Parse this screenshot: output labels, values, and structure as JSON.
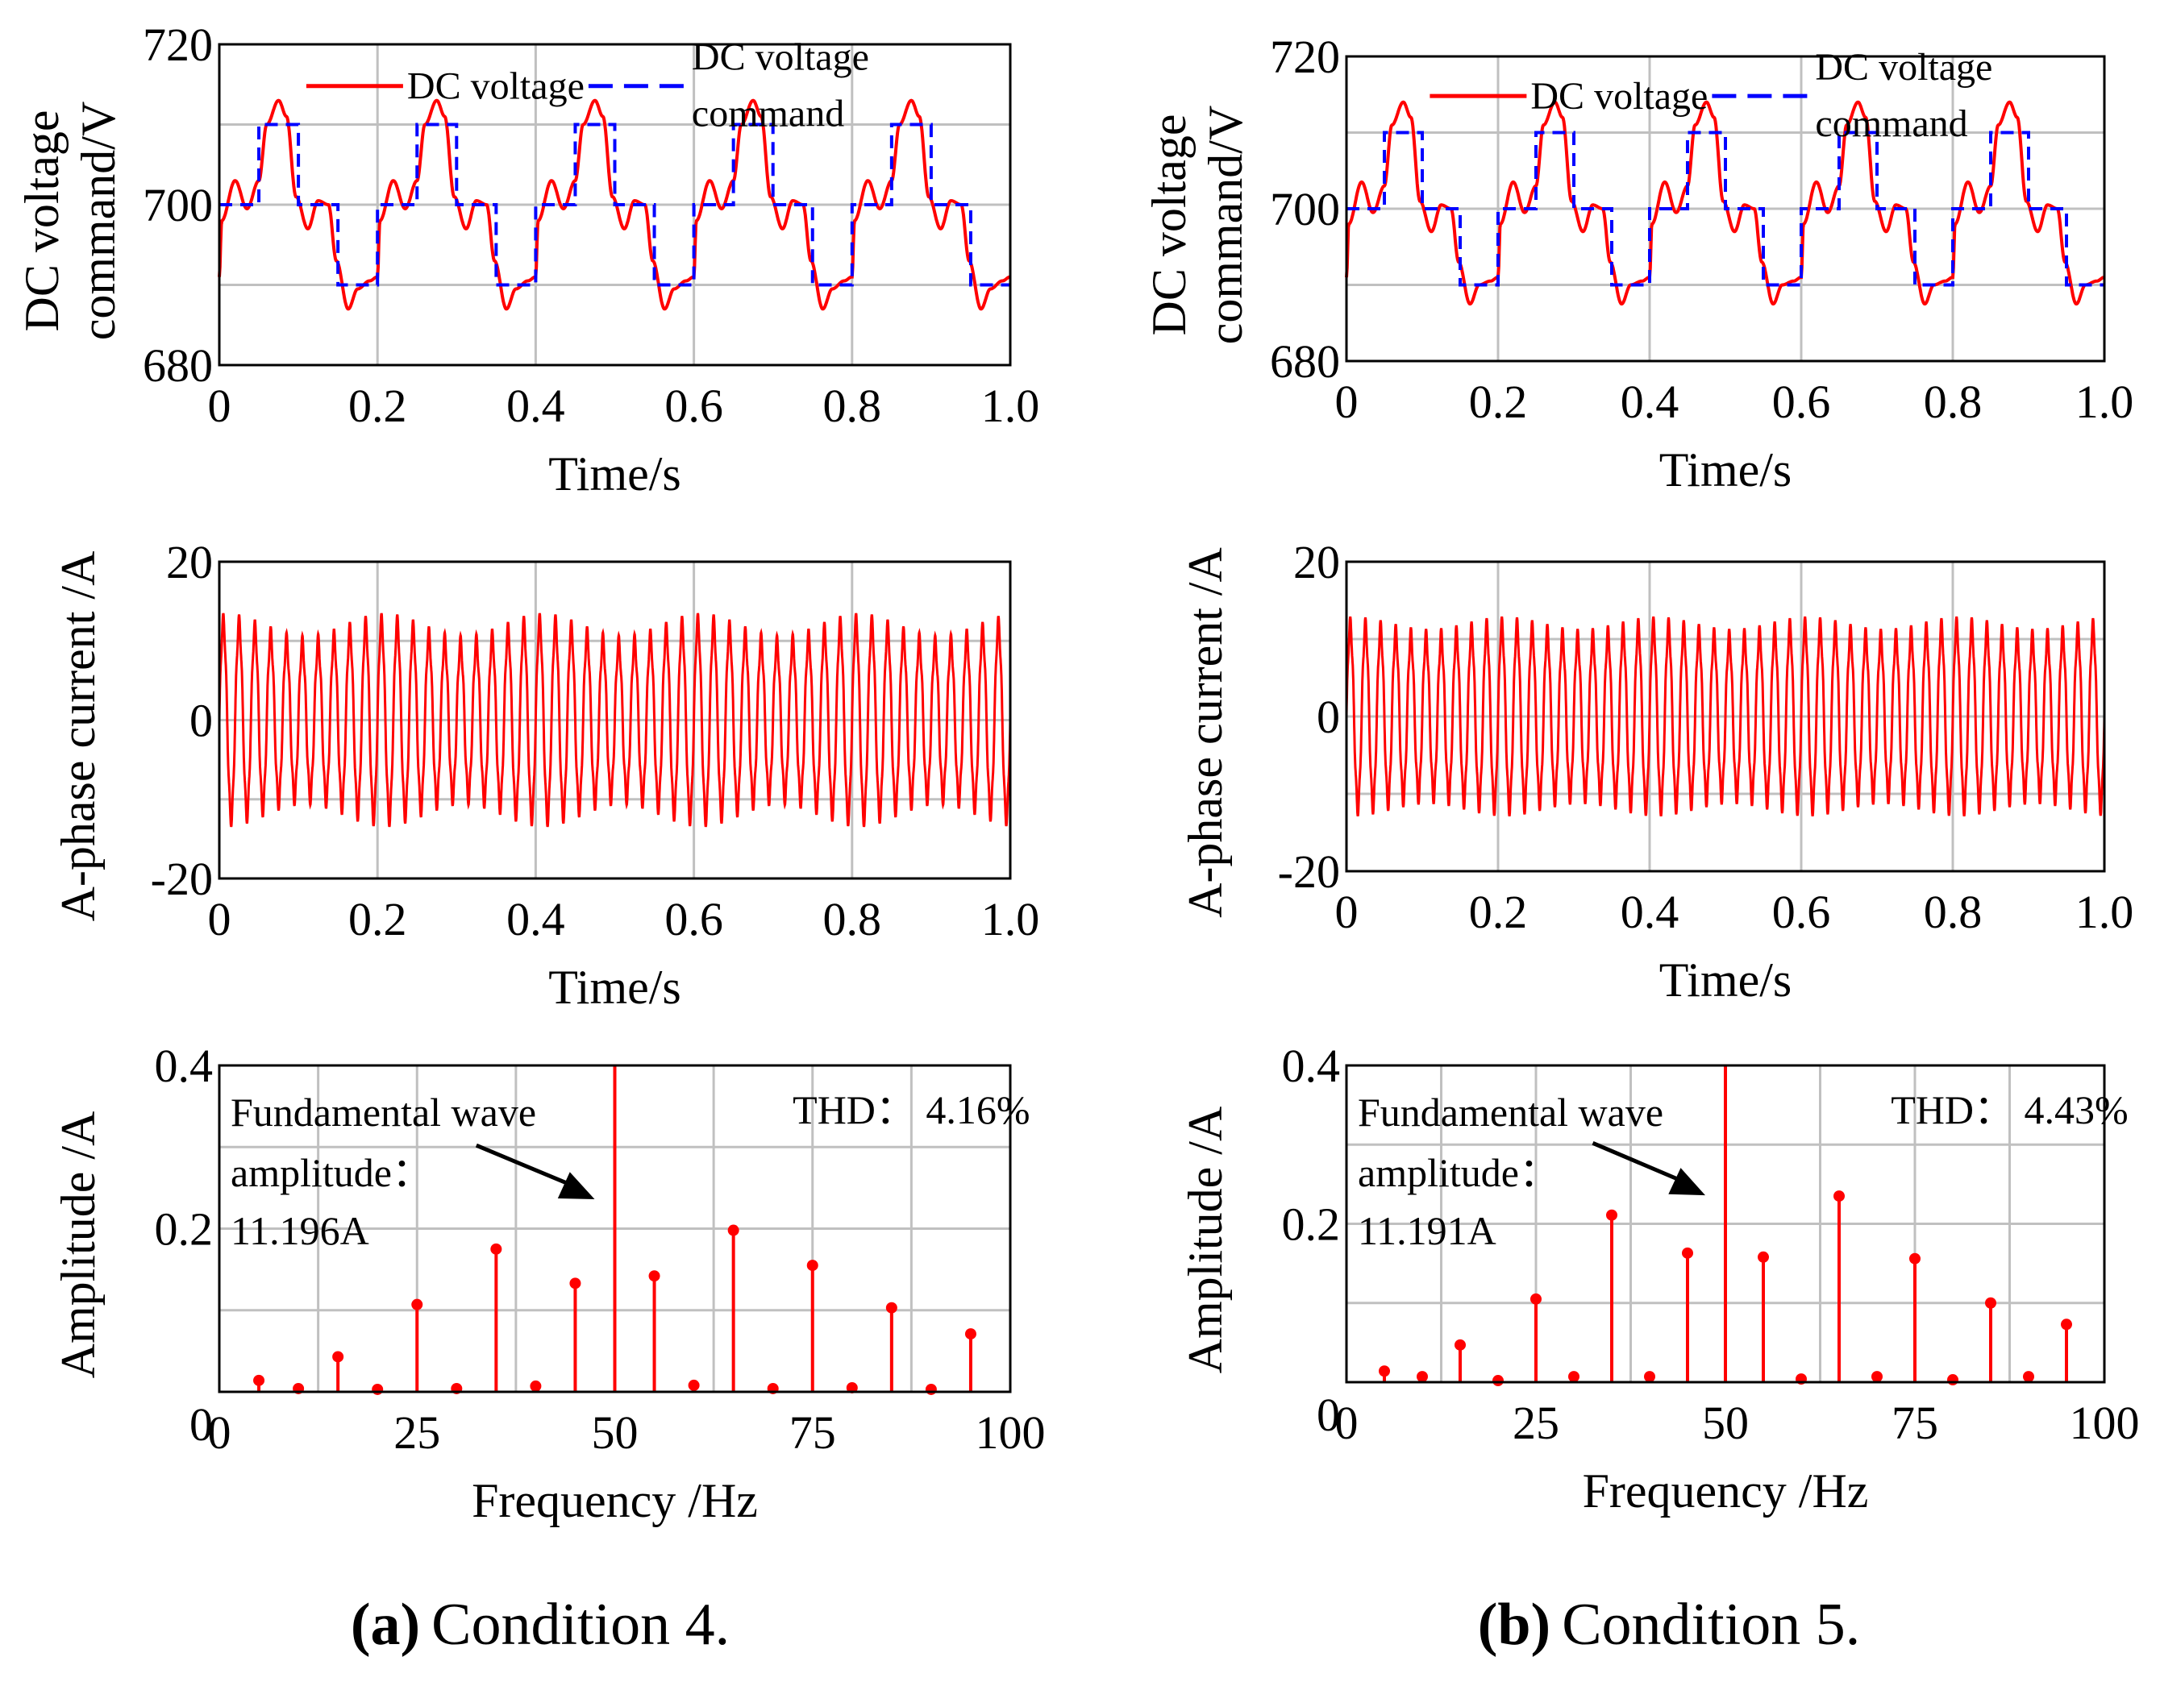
{
  "caption_a": {
    "letter": "(a)",
    "text": "Condition 4."
  },
  "caption_b": {
    "letter": "(b)",
    "text": "Condition 5."
  },
  "colors": {
    "voltage": "#ff0000",
    "command": "#0000ff",
    "grid": "#c0c0c0",
    "axis": "#000000"
  },
  "chart_data": [
    {
      "id": "a-voltage",
      "type": "line",
      "column": "a",
      "row": "voltage",
      "xlabel": "Time/s",
      "ylabel": [
        "DC voltage",
        "command/V"
      ],
      "xlim": [
        0,
        1.0
      ],
      "ylim": [
        680,
        720
      ],
      "xticks": [
        0,
        0.2,
        0.4,
        0.6,
        0.8,
        1.0
      ],
      "xtick_labels": [
        "0",
        "0.2",
        "0.4",
        "0.6",
        "0.8",
        "1.0"
      ],
      "yticks": [
        680,
        700,
        720
      ],
      "ytick_labels": [
        "680",
        "700",
        "720"
      ],
      "ygrid": [
        690,
        700,
        710
      ],
      "legend": {
        "voltage": "DC voltage",
        "command": [
          "DC voltage",
          "command"
        ]
      },
      "series": [
        {
          "name": "DC voltage",
          "style": "solid",
          "color": "#ff0000",
          "period": 0.2,
          "knots_t": [
            0,
            0.003,
            0.02,
            0.035,
            0.05,
            0.06,
            0.075,
            0.085,
            0.097,
            0.112,
            0.125,
            0.138,
            0.148,
            0.163,
            0.175,
            0.19,
            0.2
          ],
          "knots_v": [
            691,
            698,
            703,
            699.5,
            703,
            710,
            713,
            711,
            701,
            697,
            700.5,
            700,
            693,
            687,
            689.5,
            690.5,
            691
          ]
        },
        {
          "name": "DC voltage command",
          "style": "dashed",
          "color": "#0000ff",
          "period": 0.2,
          "steps_t": [
            0,
            0.05,
            0.1,
            0.15,
            0.2
          ],
          "steps_v": [
            700,
            710,
            700,
            690
          ]
        }
      ]
    },
    {
      "id": "a-current",
      "type": "line",
      "column": "a",
      "row": "current",
      "xlabel": "Time/s",
      "ylabel": "A-phase current /A",
      "xlim": [
        0,
        1.0
      ],
      "ylim": [
        -20,
        20
      ],
      "xticks": [
        0,
        0.2,
        0.4,
        0.6,
        0.8,
        1.0
      ],
      "xtick_labels": [
        "0",
        "0.2",
        "0.4",
        "0.6",
        "0.8",
        "1.0"
      ],
      "yticks": [
        -20,
        0,
        20
      ],
      "ytick_labels": [
        "-20",
        "0",
        "20"
      ],
      "ygrid": [
        -10,
        0,
        10
      ],
      "series": [
        {
          "name": "A-phase current",
          "color": "#ff0000",
          "frequency_hz": 50,
          "amplitude": 11.2,
          "ripple_amplitude": 1.4,
          "ripple_hz": 5
        }
      ]
    },
    {
      "id": "a-spectrum",
      "type": "bar",
      "column": "a",
      "row": "spectrum",
      "xlabel": "Frequency /Hz",
      "ylabel": "Amplitude /A",
      "xlim": [
        0,
        100
      ],
      "ylim": [
        0,
        0.4
      ],
      "xticks": [
        0,
        25,
        50,
        75,
        100
      ],
      "xtick_labels": [
        "0",
        "25",
        "50",
        "75",
        "100"
      ],
      "yticks": [
        0,
        0.2,
        0.4
      ],
      "ytick_labels": [
        "0",
        "0.2",
        "0.4"
      ],
      "xgrid": [
        12.5,
        25,
        37.5,
        50,
        62.5,
        75,
        87.5
      ],
      "ygrid": [
        0.1,
        0.2,
        0.3
      ],
      "fundamental": {
        "frequency": 50,
        "amplitude": 11.196
      },
      "harmonics": {
        "frequency": [
          5,
          10,
          15,
          20,
          25,
          30,
          35,
          40,
          45,
          55,
          60,
          65,
          70,
          75,
          80,
          85,
          90,
          95
        ],
        "amplitude": [
          0.014,
          0.004,
          0.043,
          0.003,
          0.107,
          0.004,
          0.175,
          0.007,
          0.133,
          0.142,
          0.008,
          0.198,
          0.004,
          0.155,
          0.005,
          0.103,
          0.003,
          0.071
        ]
      },
      "annotation": {
        "line1": "Fundamental wave",
        "line2": "amplitude：",
        "line3": "11.196A"
      },
      "thd_text": "THD： 4.16%"
    },
    {
      "id": "b-voltage",
      "type": "line",
      "column": "b",
      "row": "voltage",
      "xlabel": "Time/s",
      "ylabel": [
        "DC voltage",
        "command/V"
      ],
      "xlim": [
        0,
        1.0
      ],
      "ylim": [
        680,
        720
      ],
      "xticks": [
        0,
        0.2,
        0.4,
        0.6,
        0.8,
        1.0
      ],
      "xtick_labels": [
        "0",
        "0.2",
        "0.4",
        "0.6",
        "0.8",
        "1.0"
      ],
      "yticks": [
        680,
        700,
        720
      ],
      "ytick_labels": [
        "680",
        "700",
        "720"
      ],
      "ygrid": [
        690,
        700,
        710
      ],
      "legend": {
        "voltage": "DC voltage",
        "command": [
          "DC voltage",
          "command"
        ]
      },
      "series": [
        {
          "name": "DC voltage",
          "style": "solid",
          "color": "#ff0000",
          "period": 0.2,
          "knots_t": [
            0,
            0.003,
            0.02,
            0.035,
            0.05,
            0.06,
            0.075,
            0.085,
            0.097,
            0.112,
            0.125,
            0.138,
            0.148,
            0.163,
            0.175,
            0.19,
            0.2
          ],
          "knots_v": [
            691,
            698,
            703.5,
            699.5,
            703,
            711,
            714,
            712,
            701,
            697,
            700.5,
            700,
            693,
            687.5,
            690,
            690.5,
            691
          ]
        },
        {
          "name": "DC voltage command",
          "style": "dashed",
          "color": "#0000ff",
          "period": 0.2,
          "steps_t": [
            0,
            0.05,
            0.1,
            0.15,
            0.2
          ],
          "steps_v": [
            700,
            710,
            700,
            690
          ]
        }
      ]
    },
    {
      "id": "b-current",
      "type": "line",
      "column": "b",
      "row": "current",
      "xlabel": "Time/s",
      "ylabel": "A-phase current /A",
      "xlim": [
        0,
        1.0
      ],
      "ylim": [
        -20,
        20
      ],
      "xticks": [
        0,
        0.2,
        0.4,
        0.6,
        0.8,
        1.0
      ],
      "xtick_labels": [
        "0",
        "0.2",
        "0.4",
        "0.6",
        "0.8",
        "1.0"
      ],
      "yticks": [
        -20,
        0,
        20
      ],
      "ytick_labels": [
        "-20",
        "0",
        "20"
      ],
      "ygrid": [
        -10,
        0,
        10
      ],
      "series": [
        {
          "name": "A-phase current",
          "color": "#ff0000",
          "frequency_hz": 50,
          "amplitude": 11.2,
          "ripple_amplitude": 0.8,
          "ripple_hz": 5
        }
      ]
    },
    {
      "id": "b-spectrum",
      "type": "bar",
      "column": "b",
      "row": "spectrum",
      "xlabel": "Frequency /Hz",
      "ylabel": "Amplitude /A",
      "xlim": [
        0,
        100
      ],
      "ylim": [
        0,
        0.4
      ],
      "xticks": [
        0,
        25,
        50,
        75,
        100
      ],
      "xtick_labels": [
        "0",
        "25",
        "50",
        "75",
        "100"
      ],
      "yticks": [
        0,
        0.2,
        0.4
      ],
      "ytick_labels": [
        "0",
        "0.2",
        "0.4"
      ],
      "xgrid": [
        12.5,
        25,
        37.5,
        50,
        62.5,
        75,
        87.5
      ],
      "ygrid": [
        0.1,
        0.2,
        0.3
      ],
      "fundamental": {
        "frequency": 50,
        "amplitude": 11.191
      },
      "harmonics": {
        "frequency": [
          5,
          10,
          15,
          20,
          25,
          30,
          35,
          40,
          45,
          55,
          60,
          65,
          70,
          75,
          80,
          85,
          90,
          95
        ],
        "amplitude": [
          0.014,
          0.007,
          0.047,
          0.002,
          0.105,
          0.007,
          0.211,
          0.007,
          0.163,
          0.158,
          0.004,
          0.235,
          0.007,
          0.156,
          0.003,
          0.1,
          0.007,
          0.073
        ]
      },
      "annotation": {
        "line1": "Fundamental wave",
        "line2": "amplitude：",
        "line3": "11.191A"
      },
      "thd_text": "THD： 4.43%"
    }
  ]
}
